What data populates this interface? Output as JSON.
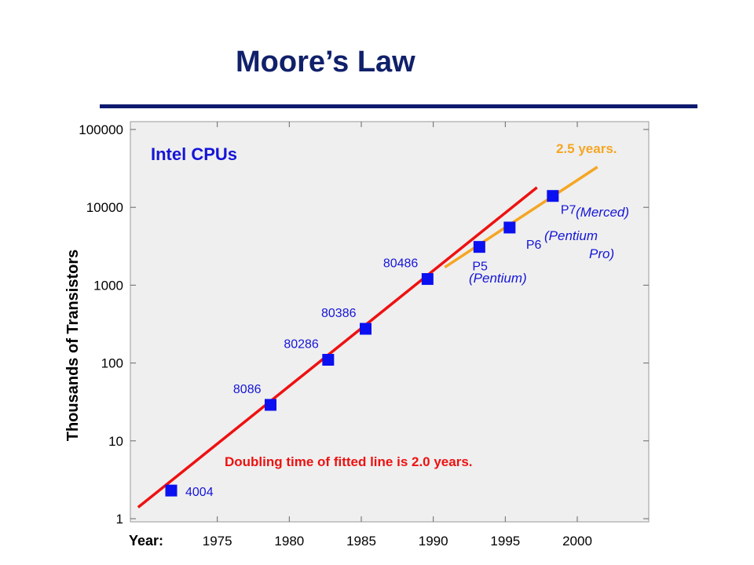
{
  "slide": {
    "title": "Moore’s Law"
  },
  "colors": {
    "title": "#10206a",
    "rule": "#0d1a6e",
    "plot_bg": "#efefef",
    "fit_line": "#ee1111",
    "fit_line_later": "#f5a623",
    "markers": "#0b10f0",
    "labels": "#1515d8"
  },
  "chart_data": {
    "type": "scatter",
    "title": "Intel CPUs",
    "xlabel": "Year:",
    "ylabel": "Thousands of Transistors",
    "yscale": "log",
    "ylim": [
      1,
      100000
    ],
    "xlim": [
      1970,
      2005
    ],
    "x_ticks": [
      1975,
      1980,
      1985,
      1990,
      1995,
      2000
    ],
    "y_ticks": [
      1,
      10,
      100,
      1000,
      10000,
      100000
    ],
    "grid": false,
    "series": [
      {
        "points": [
          {
            "label": "4004",
            "x": 1971.8,
            "y": 2.3
          },
          {
            "label": "8086",
            "x": 1978.7,
            "y": 29
          },
          {
            "label": "80286",
            "x": 1982.7,
            "y": 110
          },
          {
            "label": "80386",
            "x": 1985.3,
            "y": 275
          },
          {
            "label": "80486",
            "x": 1989.6,
            "y": 1200
          },
          {
            "label": "P5",
            "sublabel": "(Pentium)",
            "x": 1993.2,
            "y": 3100
          },
          {
            "label": "P6",
            "sublabel": "(Pentium Pro)",
            "x": 1995.3,
            "y": 5500
          },
          {
            "label": "P7",
            "sublabel": "(Merced)",
            "x": 1998.3,
            "y": 14000
          }
        ]
      }
    ],
    "fit_lines": [
      {
        "x": [
          1969.5,
          1997.2
        ],
        "y": [
          1.4,
          18000
        ]
      },
      {
        "x": [
          1990.8,
          2001.4
        ],
        "y": [
          1700,
          33000
        ]
      }
    ],
    "annotations": [
      {
        "text": "Doubling time of fitted line is 2.0 years."
      },
      {
        "text": "2.5 years."
      }
    ]
  }
}
